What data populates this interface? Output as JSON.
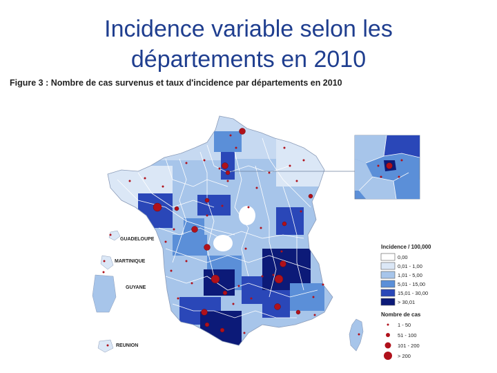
{
  "slide": {
    "title_line1": "Incidence variable selon les",
    "title_line2": "départements en 2010",
    "figure_caption": "Figure 3 : Nombre de cas survenus et taux d'incidence par départements en 2010"
  },
  "map": {
    "overseas": [
      "GUADELOUPE",
      "MARTINIQUE",
      "GUYANE",
      "REUNION"
    ],
    "legend_incidence": {
      "title": "Incidence / 100,000",
      "classes": [
        {
          "label": "0,00",
          "color": "#ffffff"
        },
        {
          "label": "0,01 - 1,00",
          "color": "#dbe7f6"
        },
        {
          "label": "1,01 - 5,00",
          "color": "#a7c5ea"
        },
        {
          "label": "5,01 - 15,00",
          "color": "#5b8fd8"
        },
        {
          "label": "15,01 - 30,00",
          "color": "#2a47b8"
        },
        {
          "label": "> 30,01",
          "color": "#0c1a78"
        }
      ]
    },
    "legend_cases": {
      "title": "Nombre de cas",
      "classes": [
        {
          "label": "1 - 50"
        },
        {
          "label": "51 - 100"
        },
        {
          "label": "101 - 200"
        },
        {
          "label": "> 200"
        }
      ]
    },
    "case_point_color": "#b0111b"
  }
}
